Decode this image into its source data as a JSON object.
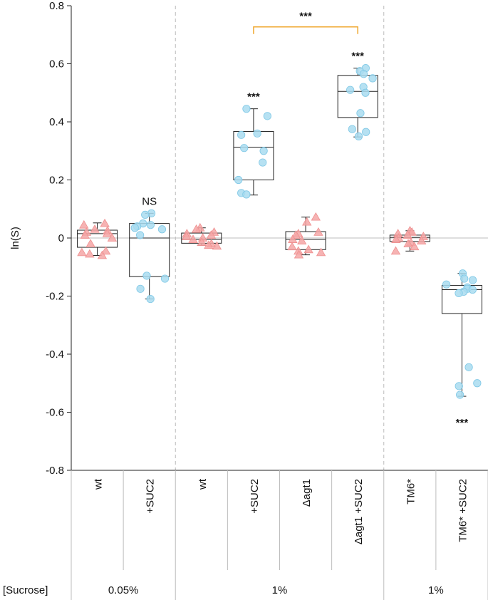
{
  "chart_data": {
    "type": "box",
    "ylabel": "ln(S)",
    "ylim": [
      -0.8,
      0.8
    ],
    "yticks": [
      "0.8",
      "0.6",
      "0.4",
      "0.2",
      "0",
      "-0.2",
      "-0.4",
      "-0.6",
      "-0.8"
    ],
    "ytick_values": [
      0.8,
      0.6,
      0.4,
      0.2,
      0,
      -0.2,
      -0.4,
      -0.6,
      -0.8
    ],
    "colors": {
      "triangle": "#f4a6a6",
      "circle": "#a9dcf0",
      "circle_edge": "#7fc8e6",
      "bracket": "#f0a830",
      "box": "#222222",
      "divider": "#bbbbbb"
    },
    "groups": [
      {
        "label": "wt",
        "marker": "triangle",
        "significance": "",
        "box": {
          "q1": -0.032,
          "median": 0.015,
          "q3": 0.027,
          "whisker_low": -0.06,
          "whisker_high": 0.052
        },
        "points": [
          0.05,
          0.045,
          0.03,
          0.025,
          0.02,
          0.015,
          0.01,
          0.0,
          -0.02,
          -0.045,
          -0.05,
          -0.055,
          -0.06
        ]
      },
      {
        "label": "+SUC2",
        "marker": "circle",
        "significance": "NS",
        "box": {
          "q1": -0.133,
          "median": 0.0,
          "q3": 0.05,
          "whisker_low": -0.21,
          "whisker_high": 0.085
        },
        "points": [
          0.085,
          0.08,
          0.05,
          0.045,
          0.04,
          0.035,
          0.03,
          0.01,
          -0.13,
          -0.14,
          -0.175,
          -0.21
        ]
      },
      {
        "label": "wt",
        "marker": "triangle",
        "significance": "",
        "box": {
          "q1": -0.018,
          "median": -0.005,
          "q3": 0.017,
          "whisker_low": -0.025,
          "whisker_high": 0.035
        },
        "points": [
          0.035,
          0.03,
          0.02,
          0.015,
          0.01,
          0.005,
          0.0,
          -0.005,
          -0.015,
          -0.02,
          -0.025,
          -0.028
        ]
      },
      {
        "label": "+SUC2",
        "marker": "circle",
        "significance": "***",
        "box": {
          "q1": 0.2,
          "median": 0.313,
          "q3": 0.367,
          "whisker_low": 0.148,
          "whisker_high": 0.445
        },
        "points": [
          0.445,
          0.42,
          0.36,
          0.355,
          0.31,
          0.3,
          0.26,
          0.2,
          0.155,
          0.15
        ]
      },
      {
        "label": "Δagt1",
        "marker": "triangle",
        "significance": "",
        "box": {
          "q1": -0.04,
          "median": -0.005,
          "q3": 0.022,
          "whisker_low": -0.058,
          "whisker_high": 0.072
        },
        "points": [
          0.072,
          0.055,
          0.02,
          0.015,
          0.01,
          -0.005,
          -0.01,
          -0.03,
          -0.04,
          -0.045,
          -0.05,
          -0.058
        ]
      },
      {
        "label": "Δagt1 +SUC2",
        "marker": "circle",
        "significance": "***",
        "box": {
          "q1": 0.415,
          "median": 0.505,
          "q3": 0.56,
          "whisker_low": 0.348,
          "whisker_high": 0.585
        },
        "points": [
          0.585,
          0.575,
          0.565,
          0.55,
          0.52,
          0.51,
          0.5,
          0.43,
          0.375,
          0.365,
          0.35
        ]
      },
      {
        "label": "TM6*",
        "marker": "triangle",
        "significance": "",
        "box": {
          "q1": -0.012,
          "median": 0.002,
          "q3": 0.01,
          "whisker_low": -0.045,
          "whisker_high": 0.025
        },
        "points": [
          0.025,
          0.02,
          0.015,
          0.01,
          0.005,
          0.0,
          -0.005,
          -0.01,
          -0.015,
          -0.02,
          -0.03,
          -0.045
        ]
      },
      {
        "label": "TM6* +SUC2",
        "marker": "circle",
        "significance": "***",
        "box": {
          "q1": -0.26,
          "median": -0.178,
          "q3": -0.163,
          "whisker_low": -0.545,
          "whisker_high": -0.122
        },
        "points": [
          -0.122,
          -0.14,
          -0.145,
          -0.16,
          -0.17,
          -0.175,
          -0.178,
          -0.185,
          -0.19,
          -0.445,
          -0.5,
          -0.51,
          -0.54
        ]
      }
    ],
    "bracket": {
      "from_group": 3,
      "to_group": 5,
      "label": "***",
      "y": 0.727
    },
    "sucrose": {
      "row_label": "[Sucrose]",
      "sections": [
        {
          "label": "0.05%",
          "groups": [
            0,
            1
          ]
        },
        {
          "label": "1%",
          "groups": [
            2,
            3,
            4,
            5
          ]
        },
        {
          "label": "1%",
          "groups": [
            6,
            7
          ]
        }
      ]
    }
  }
}
